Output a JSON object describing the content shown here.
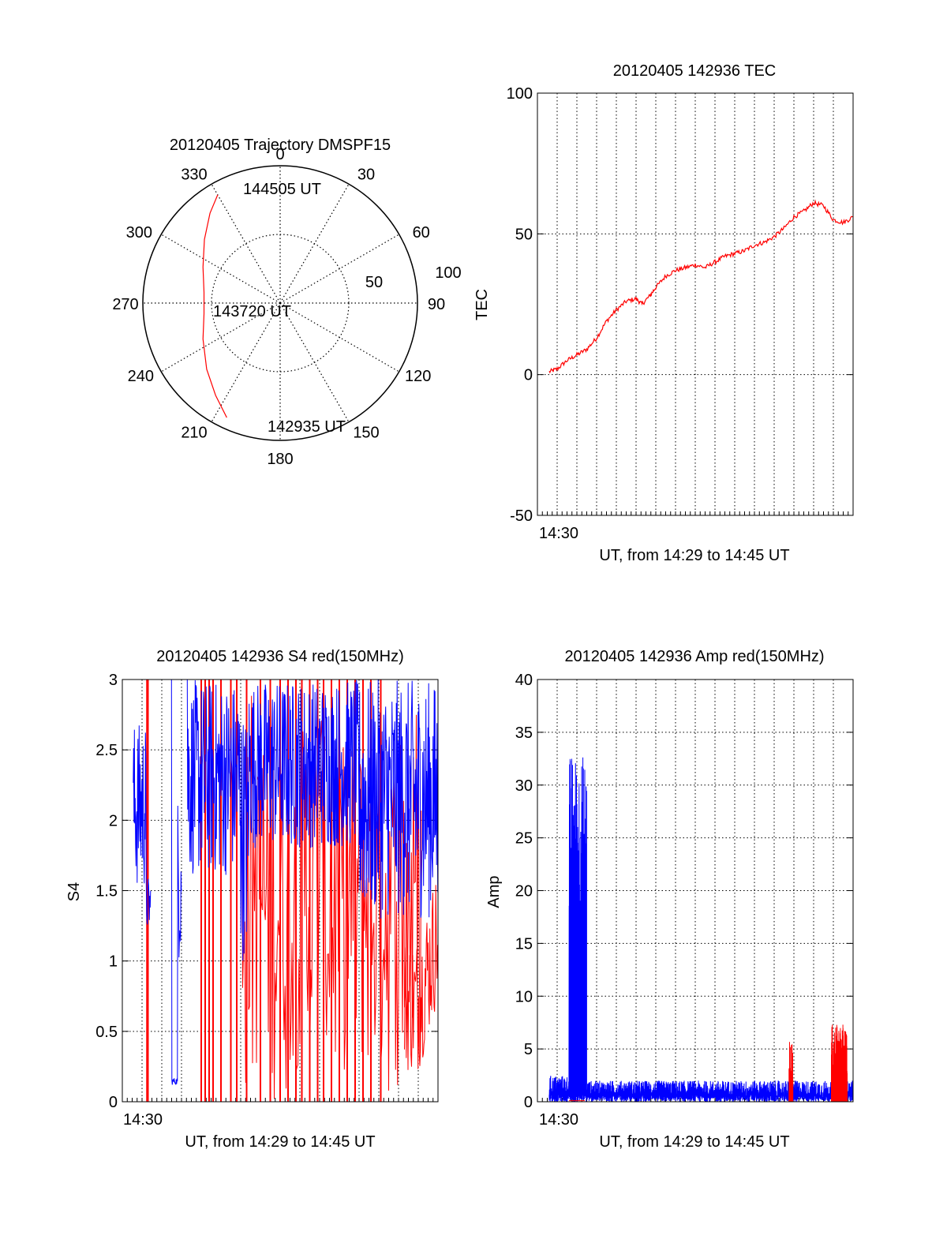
{
  "chart_data": [
    {
      "type": "polar-trajectory",
      "title": "20120405 Trajectory DMSPF15",
      "azimuth_labels": [
        "0",
        "30",
        "60",
        "90",
        "120",
        "150",
        "180",
        "210",
        "240",
        "270",
        "300",
        "330"
      ],
      "radial_labels": [
        "50",
        "100"
      ],
      "radial_max": 100,
      "trajectory": {
        "color": "#ff0000",
        "points": [
          {
            "az": 205,
            "r": 92
          },
          {
            "az": 215,
            "r": 82
          },
          {
            "az": 228,
            "r": 72
          },
          {
            "az": 245,
            "r": 62
          },
          {
            "az": 262,
            "r": 56
          },
          {
            "az": 278,
            "r": 56
          },
          {
            "az": 295,
            "r": 62
          },
          {
            "az": 310,
            "r": 72
          },
          {
            "az": 322,
            "r": 83
          },
          {
            "az": 330,
            "r": 91
          }
        ],
        "labels": [
          {
            "text": "144505 UT"
          },
          {
            "text": "143720 UT"
          },
          {
            "text": "142935 UT"
          }
        ]
      }
    },
    {
      "type": "line",
      "title": "20120405 142936 TEC",
      "xlabel": "UT, from 14:29 to 14:45 UT",
      "ylabel": "TEC",
      "x_tick_label": "14:30",
      "ylim": [
        -50,
        100
      ],
      "yticks": [
        -50,
        0,
        50,
        100
      ],
      "xlim_minutes": [
        0,
        16
      ],
      "grid": true,
      "series": [
        {
          "color": "#ff0000",
          "points": [
            [
              0.6,
              1
            ],
            [
              1,
              2
            ],
            [
              1.5,
              5
            ],
            [
              2,
              7
            ],
            [
              2.5,
              9
            ],
            [
              3,
              13
            ],
            [
              3.5,
              19
            ],
            [
              4,
              23
            ],
            [
              4.5,
              26
            ],
            [
              5,
              27
            ],
            [
              5.3,
              25
            ],
            [
              5.7,
              28
            ],
            [
              6,
              31
            ],
            [
              6.5,
              35
            ],
            [
              7,
              37
            ],
            [
              7.5,
              38
            ],
            [
              8,
              39
            ],
            [
              8.5,
              38
            ],
            [
              9,
              40
            ],
            [
              9.5,
              42
            ],
            [
              10,
              43
            ],
            [
              10.5,
              44
            ],
            [
              11,
              46
            ],
            [
              11.5,
              47
            ],
            [
              12,
              49
            ],
            [
              12.5,
              52
            ],
            [
              13,
              56
            ],
            [
              13.5,
              58
            ],
            [
              14,
              61
            ],
            [
              14.5,
              60
            ],
            [
              15,
              55
            ],
            [
              15.5,
              54
            ],
            [
              16,
              56
            ]
          ]
        }
      ]
    },
    {
      "type": "line",
      "title": "20120405 142936 S4 red(150MHz)",
      "xlabel": "UT, from 14:29 to 14:45 UT",
      "ylabel": "S4",
      "x_tick_label": "14:30",
      "ylim": [
        0,
        3
      ],
      "yticks": [
        "0",
        "0.5",
        "1",
        "1.5",
        "2",
        "2.5",
        "3"
      ],
      "xlim_minutes": [
        0,
        16
      ],
      "grid": true,
      "series": [
        {
          "color": "#0000ff"
        },
        {
          "color": "#ff0000"
        }
      ]
    },
    {
      "type": "line",
      "title": "20120405 142936 Amp red(150MHz)",
      "xlabel": "UT, from 14:29 to 14:45 UT",
      "ylabel": "Amp",
      "x_tick_label": "14:30",
      "ylim": [
        0,
        40
      ],
      "yticks": [
        0,
        5,
        10,
        15,
        20,
        25,
        30,
        35,
        40
      ],
      "xlim_minutes": [
        0,
        16
      ],
      "grid": true,
      "series": [
        {
          "color": "#0000ff"
        },
        {
          "color": "#ff0000"
        }
      ]
    }
  ]
}
